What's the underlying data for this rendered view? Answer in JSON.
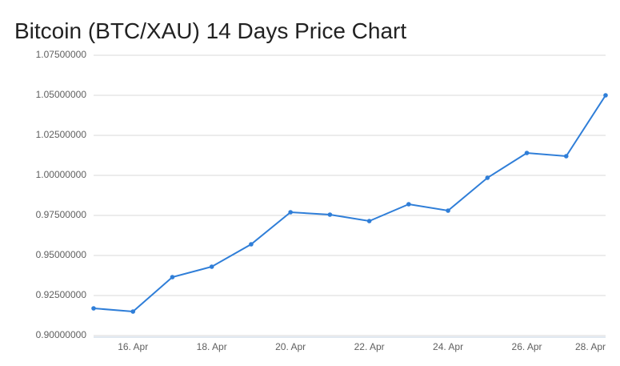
{
  "chart_data": {
    "type": "line",
    "title": "Bitcoin (BTC/XAU) 14 Days Price Chart",
    "categories": [
      null,
      "16. Apr",
      null,
      "18. Apr",
      null,
      "20. Apr",
      null,
      "22. Apr",
      null,
      "24. Apr",
      null,
      "26. Apr",
      null,
      "28. Apr"
    ],
    "series": [
      {
        "name": "BTC/XAU",
        "color": "#2f7ed8",
        "values": [
          0.917,
          0.915,
          0.9365,
          0.943,
          0.957,
          0.977,
          0.9755,
          0.9715,
          0.982,
          0.978,
          0.9985,
          1.014,
          1.012,
          1.05
        ]
      }
    ],
    "ylim": [
      0.9,
      1.075
    ],
    "yticks": [
      {
        "value": 0.9,
        "label": "0.90000000"
      },
      {
        "value": 0.925,
        "label": "0.92500000"
      },
      {
        "value": 0.95,
        "label": "0.95000000"
      },
      {
        "value": 0.975,
        "label": "0.97500000"
      },
      {
        "value": 1.0,
        "label": "1.00000000"
      },
      {
        "value": 1.025,
        "label": "1.02500000"
      },
      {
        "value": 1.05,
        "label": "1.05000000"
      },
      {
        "value": 1.075,
        "label": "1.07500000"
      }
    ],
    "grid": true
  }
}
